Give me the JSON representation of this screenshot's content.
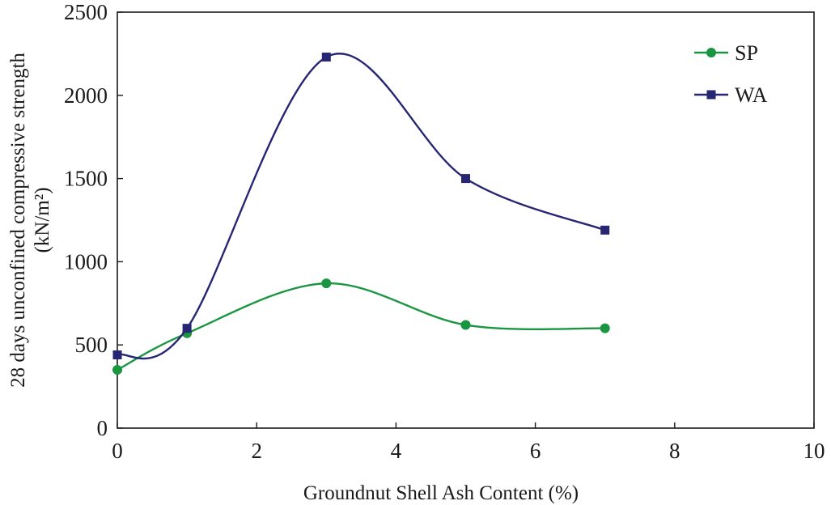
{
  "chart_data": {
    "type": "line",
    "title": "",
    "xlabel": "Groundnut Shell Ash Content (%)",
    "ylabel_lines": [
      "28 days unconfined compressive strength",
      "(kN/m²)"
    ],
    "xlim": [
      0,
      10
    ],
    "ylim": [
      0,
      2500
    ],
    "xticks": [
      "0",
      "2",
      "4",
      "6",
      "8",
      "10"
    ],
    "yticks": [
      "0",
      "500",
      "1000",
      "1500",
      "2000",
      "2500"
    ],
    "grid": false,
    "legend_position": "top-right",
    "series": [
      {
        "name": "SP",
        "color": "#1a9641",
        "marker": "circle",
        "x": [
          0,
          1,
          3,
          5,
          7
        ],
        "y": [
          350,
          570,
          870,
          620,
          600
        ]
      },
      {
        "name": "WA",
        "color": "#262673",
        "marker": "square",
        "x": [
          0,
          1,
          3,
          5,
          7
        ],
        "y": [
          440,
          600,
          2230,
          1500,
          1190
        ]
      }
    ]
  }
}
